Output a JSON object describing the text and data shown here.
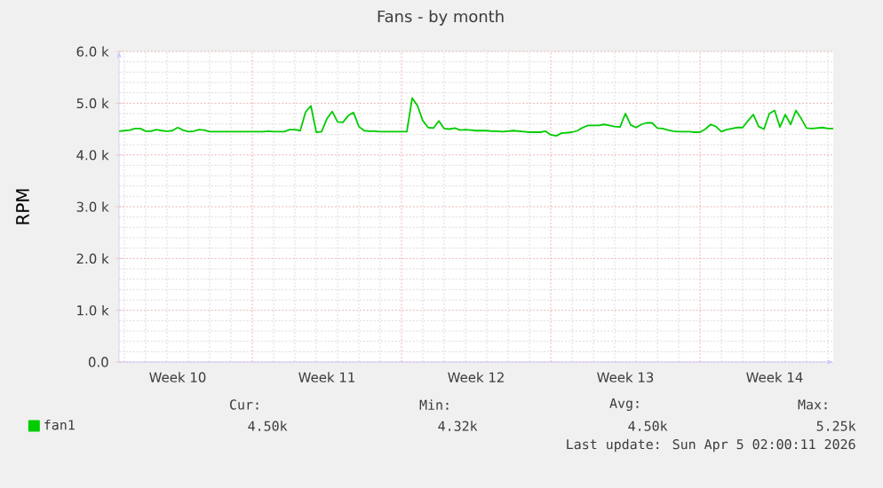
{
  "chart_data": {
    "type": "line",
    "title": "Fans - by month",
    "ylabel": "RPM",
    "categories": [
      null,
      null,
      null,
      null,
      null,
      null,
      null,
      null,
      null,
      null,
      null,
      "Week 10",
      null,
      null,
      null,
      null,
      null,
      null,
      null,
      null,
      null,
      null,
      null,
      null,
      null,
      null,
      null,
      null,
      null,
      null,
      null,
      null,
      null,
      null,
      null,
      null,
      null,
      null,
      null,
      "Week 11",
      null,
      null,
      null,
      null,
      null,
      null,
      null,
      null,
      null,
      null,
      null,
      null,
      null,
      null,
      null,
      null,
      null,
      null,
      null,
      null,
      null,
      null,
      null,
      null,
      null,
      null,
      null,
      "Week 12",
      null,
      null,
      null,
      null,
      null,
      null,
      null,
      null,
      null,
      null,
      null,
      null,
      null,
      null,
      null,
      null,
      null,
      null,
      null,
      null,
      null,
      null,
      null,
      null,
      null,
      null,
      null,
      "Week 13",
      null,
      null,
      null,
      null,
      null,
      null,
      null,
      null,
      null,
      null,
      null,
      null,
      null,
      null,
      null,
      null,
      null,
      null,
      null,
      null,
      null,
      null,
      null,
      null,
      null,
      null,
      null,
      "Week 14",
      null,
      null,
      null,
      null,
      null,
      null,
      null,
      null,
      null,
      null,
      null
    ],
    "series": [
      {
        "name": "fan1",
        "color": "#00cc00",
        "values": [
          4460,
          4470,
          4480,
          4510,
          4510,
          4460,
          4460,
          4490,
          4470,
          4460,
          4470,
          4530,
          4480,
          4450,
          4460,
          4490,
          4480,
          4450,
          4450,
          4450,
          4450,
          4450,
          4450,
          4450,
          4450,
          4450,
          4450,
          4450,
          4460,
          4450,
          4450,
          4450,
          4490,
          4490,
          4470,
          4830,
          4950,
          4440,
          4450,
          4700,
          4840,
          4640,
          4630,
          4760,
          4820,
          4550,
          4470,
          4460,
          4460,
          4450,
          4450,
          4450,
          4450,
          4450,
          4450,
          5100,
          4950,
          4660,
          4530,
          4520,
          4660,
          4510,
          4500,
          4520,
          4480,
          4490,
          4480,
          4470,
          4470,
          4470,
          4460,
          4460,
          4450,
          4460,
          4470,
          4460,
          4450,
          4440,
          4440,
          4440,
          4460,
          4390,
          4370,
          4420,
          4430,
          4440,
          4470,
          4530,
          4570,
          4570,
          4570,
          4590,
          4570,
          4550,
          4540,
          4800,
          4580,
          4530,
          4590,
          4620,
          4620,
          4520,
          4510,
          4480,
          4460,
          4450,
          4450,
          4450,
          4440,
          4440,
          4500,
          4590,
          4550,
          4450,
          4490,
          4510,
          4530,
          4530,
          4660,
          4780,
          4550,
          4500,
          4800,
          4860,
          4540,
          4780,
          4590,
          4860,
          4700,
          4520,
          4510,
          4520,
          4530,
          4510,
          4510
        ]
      }
    ],
    "ylim": [
      0,
      6000
    ],
    "yticks": [
      {
        "value": 0,
        "label": "0.0"
      },
      {
        "value": 1000,
        "label": "1.0 k"
      },
      {
        "value": 2000,
        "label": "2.0 k"
      },
      {
        "value": 3000,
        "label": "3.0 k"
      },
      {
        "value": 4000,
        "label": "4.0 k"
      },
      {
        "value": 5000,
        "label": "5.0 k"
      },
      {
        "value": 6000,
        "label": "6.0 k"
      }
    ],
    "grid": true,
    "legend": "bottom left",
    "annotations": [
      "Cur:",
      "Min:",
      "Avg:",
      "Max:",
      "4.50k",
      "4.32k",
      "4.50k",
      "5.25k",
      "Last update: Sun Apr  5 02:00:11 2026"
    ]
  }
}
